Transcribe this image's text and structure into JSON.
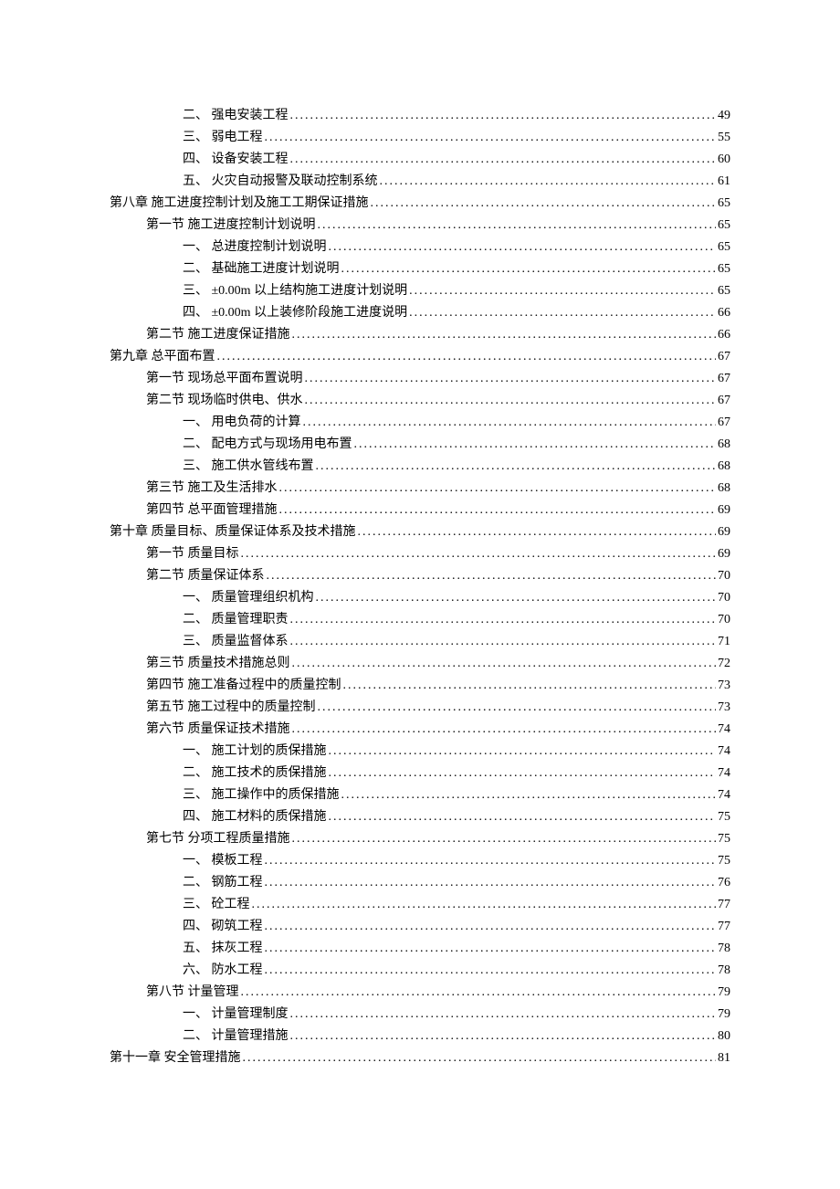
{
  "toc": [
    {
      "indent": 2,
      "label": "二、 强电安装工程",
      "page": "49"
    },
    {
      "indent": 2,
      "label": "三、 弱电工程",
      "page": "55"
    },
    {
      "indent": 2,
      "label": "四、 设备安装工程",
      "page": "60"
    },
    {
      "indent": 2,
      "label": "五、 火灾自动报警及联动控制系统",
      "page": "61"
    },
    {
      "indent": 0,
      "label": "第八章 施工进度控制计划及施工工期保证措施",
      "page": "65"
    },
    {
      "indent": 1,
      "label": "第一节 施工进度控制计划说明",
      "page": "65"
    },
    {
      "indent": 2,
      "label": "一、 总进度控制计划说明",
      "page": "65"
    },
    {
      "indent": 2,
      "label": "二、 基础施工进度计划说明",
      "page": "65"
    },
    {
      "indent": 2,
      "label": "三、 ±0.00m 以上结构施工进度计划说明 ",
      "page": "65"
    },
    {
      "indent": 2,
      "label": "四、 ±0.00m 以上装修阶段施工进度说明 ",
      "page": "66"
    },
    {
      "indent": 1,
      "label": "第二节 施工进度保证措施",
      "page": "66"
    },
    {
      "indent": 0,
      "label": "第九章 总平面布置",
      "page": "67"
    },
    {
      "indent": 1,
      "label": "第一节 现场总平面布置说明",
      "page": "67"
    },
    {
      "indent": 1,
      "label": "第二节 现场临时供电、供水",
      "page": "67"
    },
    {
      "indent": 2,
      "label": "一、 用电负荷的计算",
      "page": "67"
    },
    {
      "indent": 2,
      "label": "二、 配电方式与现场用电布置",
      "page": "68"
    },
    {
      "indent": 2,
      "label": "三、 施工供水管线布置",
      "page": "68"
    },
    {
      "indent": 1,
      "label": "第三节 施工及生活排水",
      "page": "68"
    },
    {
      "indent": 1,
      "label": "第四节 总平面管理措施",
      "page": "69"
    },
    {
      "indent": 0,
      "label": "第十章 质量目标、质量保证体系及技术措施",
      "page": "69"
    },
    {
      "indent": 1,
      "label": "第一节 质量目标",
      "page": "69"
    },
    {
      "indent": 1,
      "label": "第二节 质量保证体系",
      "page": "70"
    },
    {
      "indent": 2,
      "label": "一、 质量管理组织机构",
      "page": "70"
    },
    {
      "indent": 2,
      "label": "二、 质量管理职责",
      "page": "70"
    },
    {
      "indent": 2,
      "label": "三、 质量监督体系",
      "page": "71"
    },
    {
      "indent": 1,
      "label": "第三节 质量技术措施总则",
      "page": "72"
    },
    {
      "indent": 1,
      "label": "第四节 施工准备过程中的质量控制",
      "page": "73"
    },
    {
      "indent": 1,
      "label": "第五节 施工过程中的质量控制",
      "page": "73"
    },
    {
      "indent": 1,
      "label": "第六节 质量保证技术措施",
      "page": "74"
    },
    {
      "indent": 2,
      "label": "一、 施工计划的质保措施",
      "page": "74"
    },
    {
      "indent": 2,
      "label": "二、 施工技术的质保措施",
      "page": "74"
    },
    {
      "indent": 2,
      "label": "三、 施工操作中的质保措施",
      "page": "74"
    },
    {
      "indent": 2,
      "label": "四、 施工材料的质保措施",
      "page": "75"
    },
    {
      "indent": 1,
      "label": "第七节 分项工程质量措施",
      "page": "75"
    },
    {
      "indent": 2,
      "label": "一、 模板工程",
      "page": "75"
    },
    {
      "indent": 2,
      "label": "二、 钢筋工程",
      "page": "76"
    },
    {
      "indent": 2,
      "label": "三、 砼工程",
      "page": "77"
    },
    {
      "indent": 2,
      "label": "四、 砌筑工程",
      "page": "77"
    },
    {
      "indent": 2,
      "label": "五、 抹灰工程",
      "page": "78"
    },
    {
      "indent": 2,
      "label": "六、 防水工程",
      "page": "78"
    },
    {
      "indent": 1,
      "label": "第八节 计量管理",
      "page": "79"
    },
    {
      "indent": 2,
      "label": "一、 计量管理制度",
      "page": "79"
    },
    {
      "indent": 2,
      "label": "二、 计量管理措施",
      "page": "80"
    },
    {
      "indent": 0,
      "label": "第十一章 安全管理措施",
      "page": "81"
    }
  ]
}
